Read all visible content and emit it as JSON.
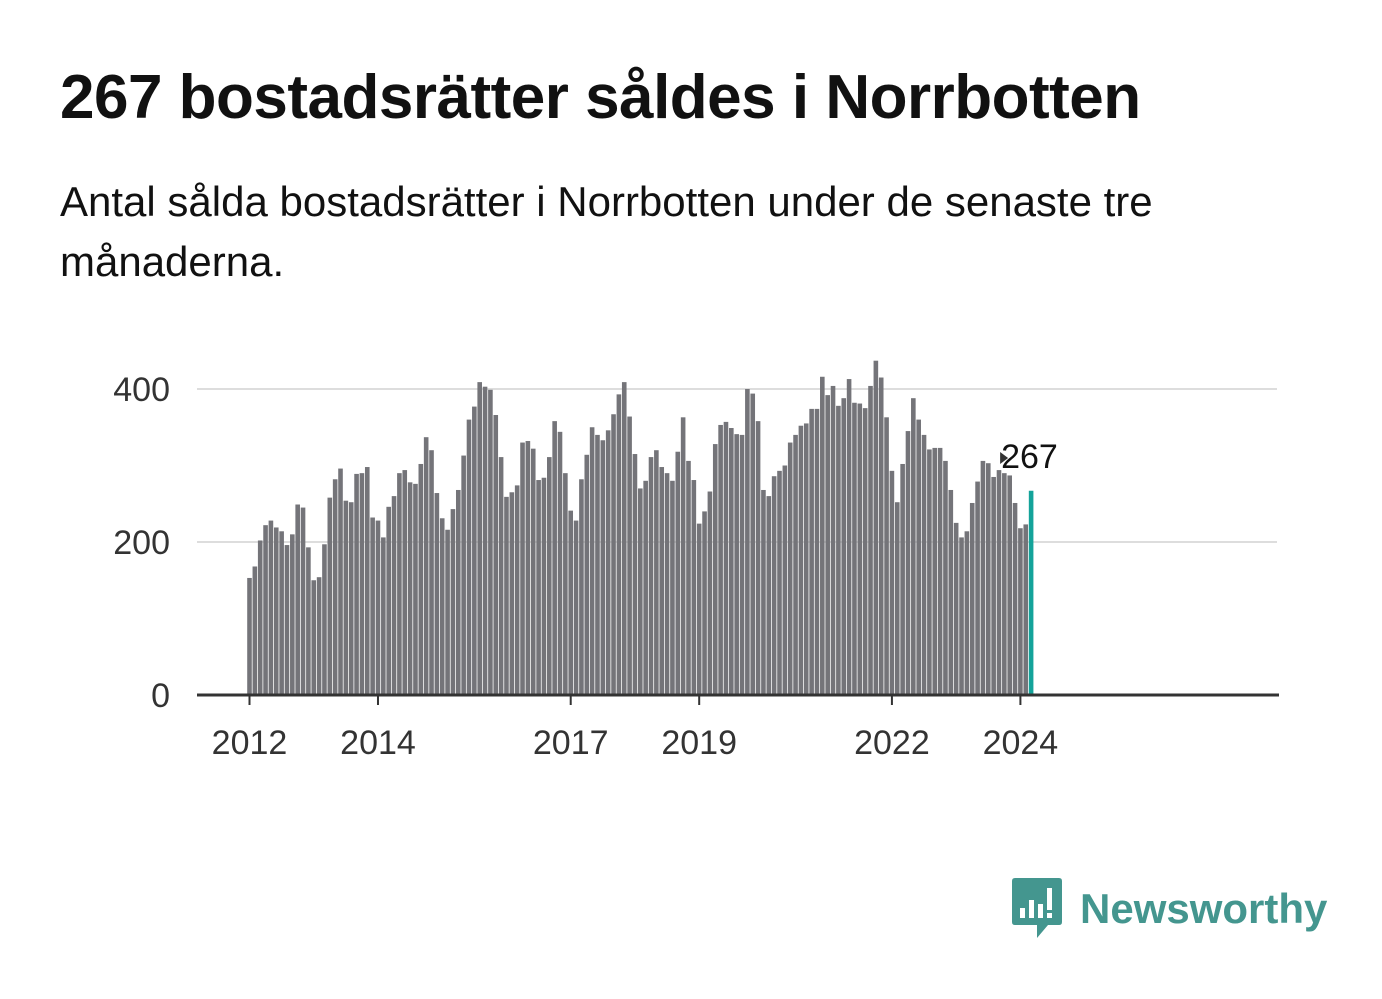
{
  "header": {
    "title": "267 bostadsrätter såldes i Norrbotten",
    "subtitle": "Antal sålda bostadsrätter i Norrbotten under de senaste tre månaderna."
  },
  "brand": {
    "name": "Newsworthy",
    "color": "#44968f"
  },
  "chart_data": {
    "type": "bar",
    "title": "267 bostadsrätter såldes i Norrbotten",
    "subtitle": "Antal sålda bostadsrätter i Norrbotten under de senaste tre månaderna.",
    "xlabel": "",
    "ylabel": "",
    "ylim": [
      0,
      470
    ],
    "yticks": [
      0,
      200,
      400
    ],
    "xticks": [
      "2012",
      "2014",
      "2017",
      "2019",
      "2022",
      "2024"
    ],
    "grid": true,
    "start": "2012-01",
    "frequency": "monthly",
    "bar_color": "#747479",
    "highlight_color": "#14a39a",
    "highlight_label": "267",
    "values": [
      153,
      168,
      202,
      222,
      228,
      219,
      214,
      196,
      210,
      249,
      245,
      193,
      150,
      154,
      197,
      258,
      282,
      296,
      254,
      252,
      289,
      290,
      298,
      232,
      228,
      206,
      246,
      260,
      290,
      294,
      278,
      276,
      302,
      337,
      320,
      264,
      231,
      216,
      243,
      268,
      313,
      360,
      377,
      409,
      403,
      399,
      366,
      311,
      259,
      265,
      274,
      330,
      332,
      322,
      281,
      284,
      311,
      358,
      344,
      290,
      241,
      228,
      282,
      314,
      350,
      340,
      333,
      346,
      367,
      393,
      409,
      364,
      315,
      270,
      280,
      311,
      320,
      298,
      290,
      280,
      318,
      363,
      306,
      281,
      224,
      240,
      266,
      328,
      353,
      357,
      349,
      341,
      340,
      400,
      394,
      358,
      268,
      260,
      286,
      293,
      300,
      330,
      340,
      352,
      355,
      374,
      374,
      416,
      392,
      404,
      378,
      388,
      413,
      382,
      381,
      375,
      404,
      437,
      415,
      363,
      293,
      252,
      302,
      345,
      388,
      360,
      340,
      321,
      323,
      323,
      306,
      268,
      225,
      206,
      214,
      251,
      279,
      306,
      303,
      285,
      294,
      290,
      287,
      251,
      218,
      223,
      267
    ]
  }
}
